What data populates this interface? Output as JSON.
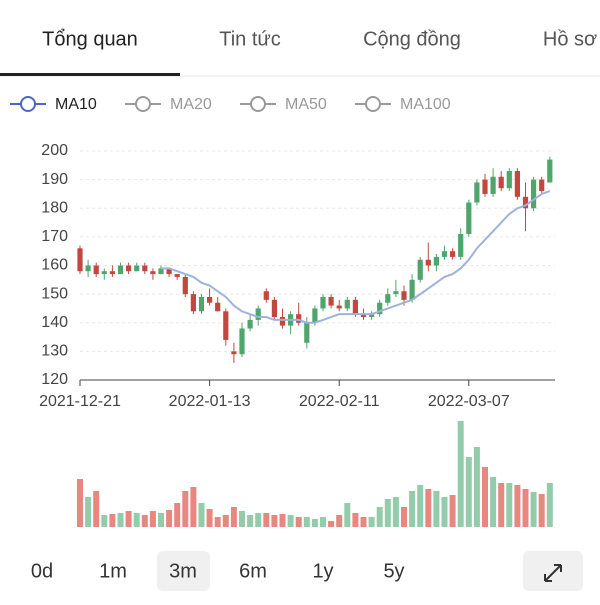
{
  "tabs": [
    "Tổng quan",
    "Tin tức",
    "Cộng đồng",
    "Hồ sơ"
  ],
  "legend": [
    "MA10",
    "MA20",
    "MA50",
    "MA100"
  ],
  "ranges": [
    "0d",
    "1m",
    "3m",
    "6m",
    "1y",
    "5y"
  ],
  "chart_data": [
    {
      "type": "candlestick",
      "categories": [
        "2021-12-21",
        null,
        null,
        null,
        null,
        null,
        null,
        null,
        null,
        null,
        null,
        null,
        null,
        null,
        null,
        null,
        "2022-01-13",
        null,
        null,
        null,
        null,
        null,
        null,
        null,
        null,
        null,
        null,
        null,
        null,
        null,
        null,
        null,
        "2022-02-11",
        null,
        null,
        null,
        null,
        null,
        null,
        null,
        null,
        null,
        null,
        null,
        null,
        null,
        null,
        null,
        "2022-03-07",
        null,
        null,
        null,
        null,
        null,
        null,
        null,
        null,
        null,
        null
      ],
      "open": [
        166,
        158,
        160,
        157,
        158,
        157,
        160,
        158,
        160,
        158,
        157,
        159,
        157,
        156,
        150,
        144,
        149,
        147,
        144,
        130,
        129,
        138,
        141,
        151,
        148,
        142,
        139,
        143,
        133,
        140,
        145,
        149,
        146,
        145,
        148,
        143,
        142,
        143,
        147,
        150,
        151,
        148,
        155,
        162,
        160,
        163,
        165,
        163,
        171,
        182,
        190,
        185,
        191,
        187,
        193,
        184,
        180,
        190,
        189
      ],
      "high": [
        167,
        162,
        161,
        159,
        160,
        161,
        161,
        161,
        161,
        159,
        160,
        159,
        157,
        157,
        151,
        150,
        152,
        149,
        145,
        133,
        140,
        143,
        146,
        152,
        149,
        145,
        144,
        147,
        142,
        146,
        150,
        150,
        148,
        149,
        149,
        145,
        144,
        148,
        152,
        155,
        153,
        157,
        163,
        168,
        164,
        167,
        166,
        173,
        183,
        190,
        192,
        194,
        193,
        194,
        194,
        189,
        191,
        191,
        198
      ],
      "low": [
        157,
        156,
        156,
        155,
        156,
        157,
        157,
        158,
        157,
        155,
        157,
        156,
        155,
        149,
        143,
        143,
        146,
        144,
        132,
        126,
        128,
        137,
        139,
        147,
        141,
        138,
        136,
        139,
        131,
        139,
        144,
        145,
        144,
        144,
        142,
        141,
        141,
        142,
        146,
        149,
        146,
        147,
        154,
        158,
        158,
        162,
        162,
        162,
        170,
        181,
        184,
        184,
        186,
        186,
        183,
        172,
        179,
        185,
        189
      ],
      "close": [
        158,
        160,
        157,
        158,
        157,
        160,
        158,
        160,
        158,
        157,
        159,
        157,
        156,
        150,
        144,
        149,
        147,
        144,
        134,
        129,
        138,
        141,
        145,
        148,
        142,
        139,
        143,
        140,
        140,
        145,
        149,
        146,
        145,
        148,
        143,
        142,
        143,
        147,
        150,
        151,
        148,
        155,
        162,
        160,
        163,
        165,
        163,
        171,
        182,
        189,
        185,
        191,
        187,
        193,
        184,
        180,
        190,
        186,
        197
      ],
      "up_color": "#4fa56c",
      "down_color": "#c2483f",
      "ma_line": {
        "color": "#9fb2df",
        "values": [
          null,
          null,
          null,
          null,
          null,
          null,
          null,
          null,
          null,
          null,
          159,
          159,
          158,
          157,
          156,
          154,
          153,
          151,
          149,
          146,
          144,
          143,
          142,
          142,
          141,
          141,
          141,
          141,
          140,
          140,
          141,
          142,
          143,
          143,
          143,
          143,
          143,
          144,
          145,
          146,
          147,
          148,
          150,
          152,
          154,
          156,
          157,
          159,
          162,
          166,
          169,
          172,
          175,
          178,
          180,
          181,
          183,
          185,
          186
        ]
      },
      "ylim": [
        120,
        200
      ],
      "yticks": [
        120,
        130,
        140,
        150,
        160,
        170,
        180,
        190,
        200
      ],
      "grid": true
    },
    {
      "type": "bar",
      "up_color": "#93ccaa",
      "down_color": "#e8877f",
      "values": [
        48,
        30,
        36,
        12,
        13,
        14,
        16,
        14,
        12,
        16,
        14,
        17,
        24,
        36,
        40,
        24,
        18,
        10,
        12,
        20,
        16,
        12,
        14,
        14,
        12,
        13,
        12,
        10,
        10,
        8,
        10,
        6,
        12,
        24,
        14,
        10,
        10,
        20,
        28,
        30,
        20,
        36,
        42,
        38,
        36,
        30,
        32,
        106,
        70,
        80,
        60,
        50,
        44,
        44,
        42,
        38,
        35,
        33,
        44
      ]
    }
  ]
}
